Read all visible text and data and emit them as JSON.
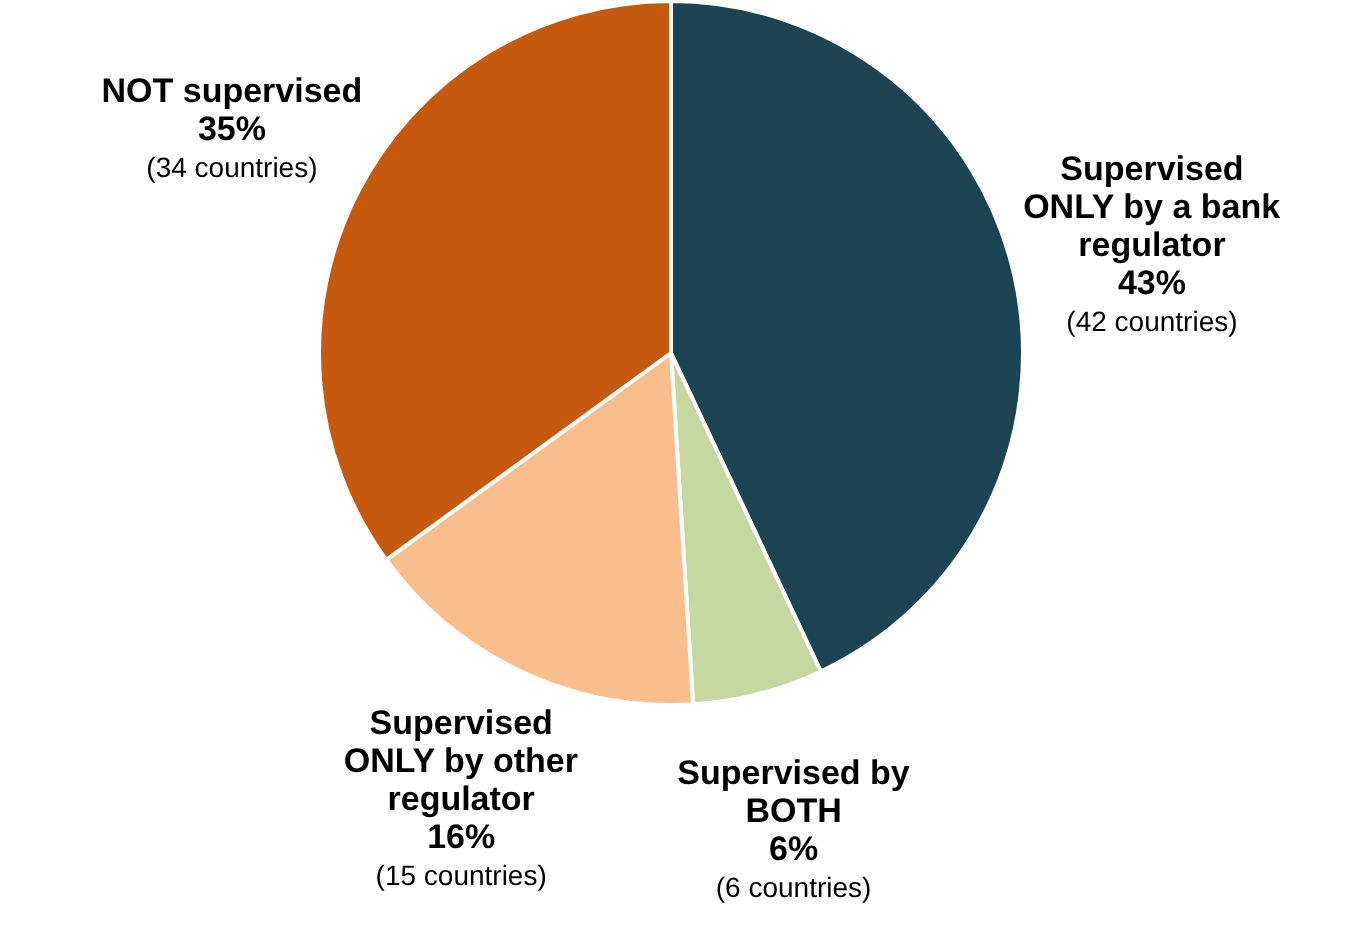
{
  "chart_data": {
    "type": "pie",
    "categories": [
      "Supervised ONLY by a bank regulator",
      "Supervised by BOTH",
      "Supervised ONLY by other regulator",
      "NOT supervised"
    ],
    "values": [
      43,
      6,
      16,
      35
    ],
    "colors": [
      "#1c4452",
      "#c5d8a0",
      "#f8be8c",
      "#c55a0e"
    ],
    "value_labels": [
      "43%",
      "6%",
      "16%",
      "35%"
    ],
    "annotations": [
      "(42 countries)",
      "(6 countries)",
      "(15 countries)",
      "(34 countries)"
    ]
  }
}
